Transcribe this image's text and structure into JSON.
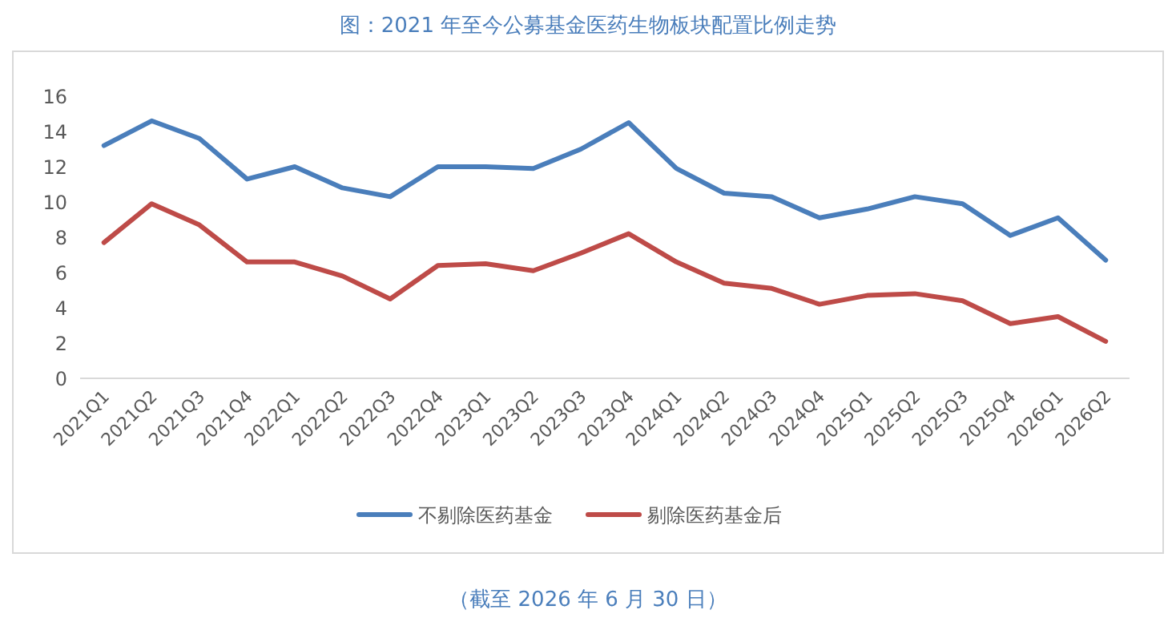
{
  "chart_data": {
    "type": "line",
    "title": "图：2021 年至今公募基金医药生物板块配置比例走势",
    "categories": [
      "2021Q1",
      "2021Q2",
      "2021Q3",
      "2021Q4",
      "2022Q1",
      "2022Q2",
      "2022Q3",
      "2022Q4",
      "2023Q1",
      "2023Q2",
      "2023Q3",
      "2023Q4",
      "2024Q1",
      "2024Q2",
      "2024Q3",
      "2024Q4",
      "2025Q1",
      "2025Q2",
      "2025Q3",
      "2025Q4",
      "2026Q1",
      "2026Q2"
    ],
    "series": [
      {
        "name": "不剔除医药基金",
        "color": "#4a7ebb",
        "values": [
          13.2,
          14.6,
          13.6,
          11.3,
          12.0,
          10.8,
          10.3,
          12.0,
          12.0,
          11.9,
          13.0,
          14.5,
          11.9,
          10.5,
          10.3,
          9.1,
          9.6,
          10.3,
          9.9,
          8.1,
          9.1,
          6.7
        ]
      },
      {
        "name": "剔除医药基金后",
        "color": "#be4b48",
        "values": [
          7.7,
          9.9,
          8.7,
          6.6,
          6.6,
          5.8,
          4.5,
          6.4,
          6.5,
          6.1,
          7.1,
          8.2,
          6.6,
          5.4,
          5.1,
          4.2,
          4.7,
          4.8,
          4.4,
          3.1,
          3.5,
          2.1
        ]
      }
    ],
    "ylim": [
      0,
      16
    ],
    "yticks": [
      0,
      2,
      4,
      6,
      8,
      10,
      12,
      14,
      16
    ],
    "legend": "bottom",
    "annotations": [
      "（截至 2026 年 6 月 30 日）"
    ]
  }
}
